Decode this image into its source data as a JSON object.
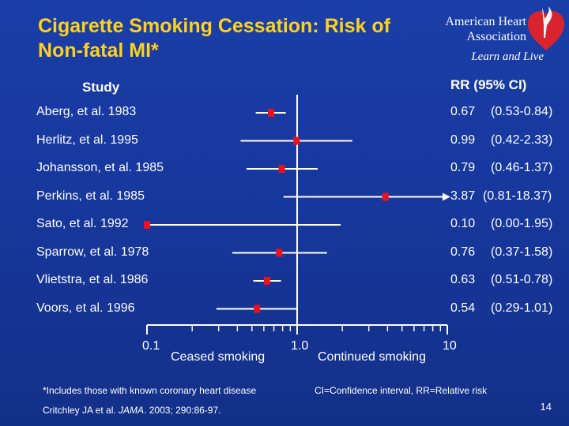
{
  "slide": {
    "title": "Cigarette Smoking Cessation: Risk of Non-fatal MI*",
    "logo": {
      "name_line1": "American Heart",
      "name_line2": "Association",
      "tagline": "Learn and Live"
    },
    "page_number": "14"
  },
  "chart_data": {
    "type": "forest",
    "title": "Cigarette Smoking Cessation: Risk of Non-fatal MI*",
    "column_headers": {
      "study": "Study",
      "estimate": "RR (95% CI)"
    },
    "x_scale": "log",
    "xlim": [
      0.1,
      10
    ],
    "reference_line": 1.0,
    "x_tick_labels": [
      "0.1",
      "1.0",
      "10"
    ],
    "x_direction_labels": {
      "left": "Ceased smoking",
      "right": "Continued smoking"
    },
    "studies": [
      {
        "label": "Aberg, et al. 1983",
        "rr": 0.67,
        "ci_low": 0.53,
        "ci_high": 0.84,
        "rr_text": "0.67",
        "ci_text": "(0.53-0.84)"
      },
      {
        "label": "Herlitz, et al. 1995",
        "rr": 0.99,
        "ci_low": 0.42,
        "ci_high": 2.33,
        "rr_text": "0.99",
        "ci_text": "(0.42-2.33)"
      },
      {
        "label": "Johansson, et al. 1985",
        "rr": 0.79,
        "ci_low": 0.46,
        "ci_high": 1.37,
        "rr_text": "0.79",
        "ci_text": "(0.46-1.37)"
      },
      {
        "label": "Perkins, et al. 1985",
        "rr": 3.87,
        "ci_low": 0.81,
        "ci_high": 18.37,
        "rr_text": "3.87",
        "ci_text": "(0.81-18.37)"
      },
      {
        "label": "Sato, et al. 1992",
        "rr": 0.1,
        "ci_low": 0.0,
        "ci_high": 1.95,
        "rr_text": "0.10",
        "ci_text": "(0.00-1.95)"
      },
      {
        "label": "Sparrow, et al. 1978",
        "rr": 0.76,
        "ci_low": 0.37,
        "ci_high": 1.58,
        "rr_text": "0.76",
        "ci_text": "(0.37-1.58)"
      },
      {
        "label": "Vlietstra, et al. 1986",
        "rr": 0.63,
        "ci_low": 0.51,
        "ci_high": 0.78,
        "rr_text": "0.63",
        "ci_text": "(0.51-0.78)"
      },
      {
        "label": "Voors, et al. 1996",
        "rr": 0.54,
        "ci_low": 0.29,
        "ci_high": 1.01,
        "rr_text": "0.54",
        "ci_text": "(0.29-1.01)"
      }
    ],
    "footnotes": {
      "left": "*Includes those with known coronary heart disease",
      "right": "CI=Confidence interval, RR=Relative risk",
      "citation_prefix": "Critchley JA et al. ",
      "citation_journal": "JAMA",
      "citation_suffix": ". 2003; 290:86-97."
    }
  },
  "colors": {
    "background": "#16369a",
    "title": "#ffd11a",
    "text": "#ffffff",
    "marker": "#e8121c",
    "logo_red": "#d9232e"
  }
}
